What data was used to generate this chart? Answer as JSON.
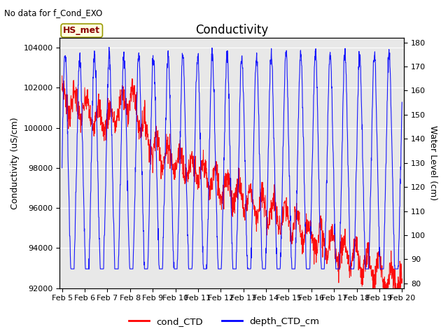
{
  "title": "Conductivity",
  "no_data_text": "No data for f_Cond_EXO",
  "station_label": "HS_met",
  "ylabel_left": "Conductivity (uS/cm)",
  "ylabel_right": "Water Level (cm)",
  "ylim_left": [
    92000,
    104500
  ],
  "ylim_right": [
    78,
    182
  ],
  "yticks_left": [
    92000,
    94000,
    96000,
    98000,
    100000,
    102000,
    104000
  ],
  "yticks_right": [
    80,
    90,
    100,
    110,
    120,
    130,
    140,
    150,
    160,
    170,
    180
  ],
  "xticklabels": [
    "Feb 5",
    "Feb 6",
    "Feb 7",
    "Feb 8",
    "Feb 9",
    "Feb 10",
    "Feb 11",
    "Feb 12",
    "Feb 13",
    "Feb 14",
    "Feb 15",
    "Feb 16",
    "Feb 17",
    "Feb 18",
    "Feb 19",
    "Feb 20"
  ],
  "legend_labels": [
    "cond_CTD",
    "depth_CTD_cm"
  ],
  "line_colors": [
    "red",
    "blue"
  ],
  "bg_color": "#e8e8e8",
  "fig_color": "#ffffff",
  "title_fontsize": 12,
  "label_fontsize": 9,
  "tick_fontsize": 8
}
